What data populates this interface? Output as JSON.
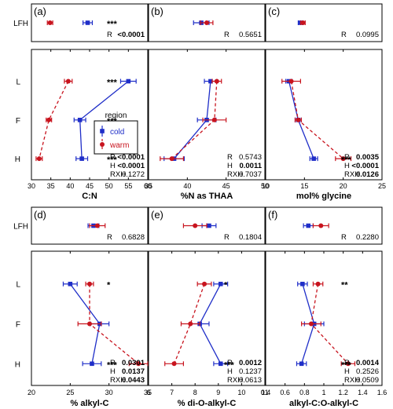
{
  "colors": {
    "cold": "#1f2ec8",
    "warm": "#c8141e",
    "axis": "#000000"
  },
  "chart_data": [
    {
      "panel": "(a)",
      "type": "scatter",
      "xlabel": "C:N",
      "xlim": [
        30,
        60
      ],
      "xticks": [
        30,
        35,
        40,
        45,
        50,
        55,
        60
      ],
      "categories": [
        "L",
        "F",
        "H"
      ],
      "top_category": "LFH",
      "series": [
        {
          "name": "cold",
          "points": [
            {
              "layer": "LFH",
              "x": 44.5,
              "err": 1.2
            },
            {
              "layer": "L",
              "x": 55,
              "err": 2.0
            },
            {
              "layer": "F",
              "x": 42.5,
              "err": 1.5
            },
            {
              "layer": "H",
              "x": 43,
              "err": 1.5
            }
          ]
        },
        {
          "name": "warm",
          "points": [
            {
              "layer": "LFH",
              "x": 34.8,
              "err": 0.7
            },
            {
              "layer": "L",
              "x": 39.5,
              "err": 1.0
            },
            {
              "layer": "F",
              "x": 34.5,
              "err": 0.7
            },
            {
              "layer": "H",
              "x": 32,
              "err": 0.8
            }
          ]
        }
      ],
      "sig_stars": [
        {
          "layer": "LFH",
          "text": "***"
        },
        {
          "layer": "L",
          "text": "***"
        },
        {
          "layer": "F",
          "text": "***"
        },
        {
          "layer": "H",
          "text": "***"
        }
      ],
      "top_stats": [
        {
          "label": "R",
          "value": "<0.0001",
          "bold": true
        }
      ],
      "bottom_stats": [
        {
          "label": "R",
          "value": "<0.0001",
          "bold": true
        },
        {
          "label": "H",
          "value": "<0.0001",
          "bold": true
        },
        {
          "label": "RXH",
          "value": "0.1272",
          "bold": false
        }
      ],
      "legend": {
        "title": "region",
        "entries": [
          "cold",
          "warm"
        ],
        "placement": "right-middle"
      }
    },
    {
      "panel": "(b)",
      "type": "scatter",
      "xlabel": "%N as THAA",
      "xlim": [
        35,
        50
      ],
      "xticks": [
        35,
        40,
        45,
        50
      ],
      "categories": [
        "L",
        "F",
        "H"
      ],
      "top_category": "LFH",
      "series": [
        {
          "name": "cold",
          "points": [
            {
              "layer": "LFH",
              "x": 41.8,
              "err": 1.0
            },
            {
              "layer": "L",
              "x": 43,
              "err": 0.8
            },
            {
              "layer": "F",
              "x": 42.5,
              "err": 1.2
            },
            {
              "layer": "H",
              "x": 38.3,
              "err": 1.3
            }
          ]
        },
        {
          "name": "warm",
          "points": [
            {
              "layer": "LFH",
              "x": 42.5,
              "err": 0.8
            },
            {
              "layer": "L",
              "x": 43.8,
              "err": 0.6
            },
            {
              "layer": "F",
              "x": 43.5,
              "err": 1.5
            },
            {
              "layer": "H",
              "x": 38,
              "err": 1.5
            }
          ]
        }
      ],
      "sig_stars": [],
      "top_stats": [
        {
          "label": "R",
          "value": "0.5651",
          "bold": false
        }
      ],
      "bottom_stats": [
        {
          "label": "R",
          "value": "0.5743",
          "bold": false
        },
        {
          "label": "H",
          "value": "0.0011",
          "bold": true
        },
        {
          "label": "RXH",
          "value": "0.7037",
          "bold": false
        }
      ]
    },
    {
      "panel": "(c)",
      "type": "scatter",
      "xlabel": "mol% glycine",
      "xlim": [
        10,
        25
      ],
      "xticks": [
        10,
        15,
        20,
        25
      ],
      "categories": [
        "L",
        "F",
        "H"
      ],
      "top_category": "LFH",
      "series": [
        {
          "name": "cold",
          "points": [
            {
              "layer": "LFH",
              "x": 14.5,
              "err": 0.3
            },
            {
              "layer": "L",
              "x": 13,
              "err": 0.4
            },
            {
              "layer": "F",
              "x": 14.2,
              "err": 0.4
            },
            {
              "layer": "H",
              "x": 16.2,
              "err": 0.5
            }
          ]
        },
        {
          "name": "warm",
          "points": [
            {
              "layer": "LFH",
              "x": 14.8,
              "err": 0.3
            },
            {
              "layer": "L",
              "x": 13.3,
              "err": 1.2
            },
            {
              "layer": "F",
              "x": 14.2,
              "err": 0.4
            },
            {
              "layer": "H",
              "x": 20,
              "err": 1.0
            }
          ]
        }
      ],
      "sig_stars": [
        {
          "layer": "H",
          "text": "***"
        }
      ],
      "top_stats": [
        {
          "label": "R",
          "value": "0.0995",
          "bold": false
        }
      ],
      "bottom_stats": [
        {
          "label": "R",
          "value": "0.0035",
          "bold": true
        },
        {
          "label": "H",
          "value": "<0.0001",
          "bold": true
        },
        {
          "label": "RXH",
          "value": "0.0126",
          "bold": true
        }
      ]
    },
    {
      "panel": "(d)",
      "type": "scatter",
      "xlabel": "% alkyl-C",
      "xlim": [
        20,
        35
      ],
      "xticks": [
        20,
        25,
        30,
        35
      ],
      "categories": [
        "L",
        "F",
        "H"
      ],
      "top_category": "LFH",
      "series": [
        {
          "name": "cold",
          "points": [
            {
              "layer": "LFH",
              "x": 28.0,
              "err": 0.7
            },
            {
              "layer": "L",
              "x": 25,
              "err": 0.9
            },
            {
              "layer": "F",
              "x": 28.8,
              "err": 1.2
            },
            {
              "layer": "H",
              "x": 27.8,
              "err": 1.2
            }
          ]
        },
        {
          "name": "warm",
          "points": [
            {
              "layer": "LFH",
              "x": 28.5,
              "err": 1.0
            },
            {
              "layer": "L",
              "x": 27.5,
              "err": 0.5
            },
            {
              "layer": "F",
              "x": 27.5,
              "err": 1.5
            },
            {
              "layer": "H",
              "x": 33.8,
              "err": 1.2
            }
          ]
        }
      ],
      "sig_stars": [
        {
          "layer": "L",
          "text": "*"
        },
        {
          "layer": "H",
          "text": "***"
        }
      ],
      "top_stats": [
        {
          "label": "R",
          "value": "0.6828",
          "bold": false
        }
      ],
      "bottom_stats": [
        {
          "label": "R",
          "value": "0.0301",
          "bold": true
        },
        {
          "label": "H",
          "value": "0.0137",
          "bold": true
        },
        {
          "label": "RXH",
          "value": "0.0443",
          "bold": true
        }
      ]
    },
    {
      "panel": "(e)",
      "type": "scatter",
      "xlabel": "% di-O-alkyl-C",
      "xlim": [
        6,
        11
      ],
      "xticks": [
        6,
        7,
        8,
        9,
        10,
        11
      ],
      "categories": [
        "L",
        "F",
        "H"
      ],
      "top_category": "LFH",
      "series": [
        {
          "name": "cold",
          "points": [
            {
              "layer": "LFH",
              "x": 8.6,
              "err": 0.3
            },
            {
              "layer": "L",
              "x": 9.1,
              "err": 0.3
            },
            {
              "layer": "F",
              "x": 8.2,
              "err": 0.4
            },
            {
              "layer": "H",
              "x": 9.1,
              "err": 0.3
            }
          ]
        },
        {
          "name": "warm",
          "points": [
            {
              "layer": "LFH",
              "x": 8.0,
              "err": 0.5
            },
            {
              "layer": "L",
              "x": 8.4,
              "err": 0.3
            },
            {
              "layer": "F",
              "x": 7.8,
              "err": 0.4
            },
            {
              "layer": "H",
              "x": 7.1,
              "err": 0.4
            }
          ]
        }
      ],
      "sig_stars": [
        {
          "layer": "L",
          "text": "*"
        },
        {
          "layer": "H",
          "text": "***"
        }
      ],
      "top_stats": [
        {
          "label": "R",
          "value": "0.1804",
          "bold": false
        }
      ],
      "bottom_stats": [
        {
          "label": "R",
          "value": "0.0012",
          "bold": true
        },
        {
          "label": "H",
          "value": "0.1237",
          "bold": false
        },
        {
          "label": "RXH",
          "value": "0.0613",
          "bold": false
        }
      ]
    },
    {
      "panel": "(f)",
      "type": "scatter",
      "xlabel": "alkyl-C:O-alkyl-C",
      "xlim": [
        0.4,
        1.6
      ],
      "xticks": [
        0.4,
        0.6,
        0.8,
        1,
        1.2,
        1.4,
        1.6
      ],
      "xtick_labels": [
        "0.4",
        "0.6",
        "0.8",
        "1",
        "1.2",
        "1.4",
        "1.6"
      ],
      "categories": [
        "L",
        "F",
        "H"
      ],
      "top_category": "LFH",
      "series": [
        {
          "name": "cold",
          "points": [
            {
              "layer": "LFH",
              "x": 0.84,
              "err": 0.05
            },
            {
              "layer": "L",
              "x": 0.78,
              "err": 0.05
            },
            {
              "layer": "F",
              "x": 0.9,
              "err": 0.1
            },
            {
              "layer": "H",
              "x": 0.77,
              "err": 0.05
            }
          ]
        },
        {
          "name": "warm",
          "points": [
            {
              "layer": "LFH",
              "x": 0.97,
              "err": 0.08
            },
            {
              "layer": "L",
              "x": 0.94,
              "err": 0.05
            },
            {
              "layer": "F",
              "x": 0.87,
              "err": 0.1
            },
            {
              "layer": "H",
              "x": 1.25,
              "err": 0.07
            }
          ]
        }
      ],
      "sig_stars": [
        {
          "layer": "L",
          "text": "**"
        },
        {
          "layer": "H",
          "text": "***"
        }
      ],
      "top_stats": [
        {
          "label": "R",
          "value": "0.2280",
          "bold": false
        }
      ],
      "bottom_stats": [
        {
          "label": "R",
          "value": "0.0014",
          "bold": true
        },
        {
          "label": "H",
          "value": "0.2526",
          "bold": false
        },
        {
          "label": "RXH",
          "value": "0.0509",
          "bold": false
        }
      ]
    }
  ]
}
